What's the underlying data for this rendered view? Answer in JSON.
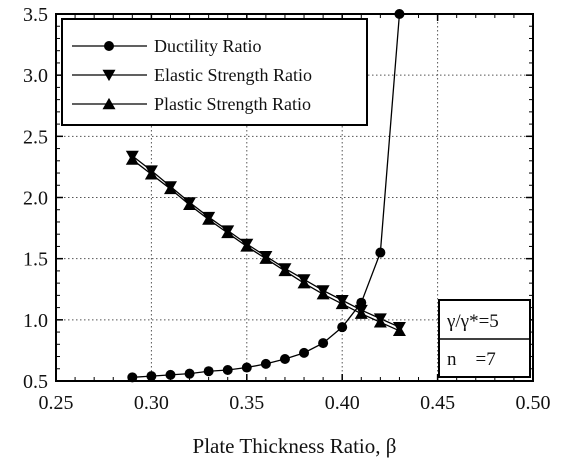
{
  "chart_data": {
    "type": "line",
    "xlabel": "Plate Thickness Ratio,  β",
    "ylabel": "",
    "xlim": [
      0.25,
      0.5
    ],
    "ylim": [
      0.5,
      3.5
    ],
    "xticks": [
      0.25,
      0.3,
      0.35,
      0.4,
      0.45,
      0.5
    ],
    "xtick_labels": [
      "0.25",
      "0.30",
      "0.35",
      "0.40",
      "0.45",
      "0.50"
    ],
    "yticks": [
      0.5,
      1.0,
      1.5,
      2.0,
      2.5,
      3.0,
      3.5
    ],
    "ytick_labels": [
      "0.5",
      "1.0",
      "1.5",
      "2.0",
      "2.5",
      "3.0",
      "3.5"
    ],
    "grid": true,
    "legend_position": "top-left",
    "series": [
      {
        "name": "Ductility Ratio",
        "marker": "circle",
        "x": [
          0.29,
          0.3,
          0.31,
          0.32,
          0.33,
          0.34,
          0.35,
          0.36,
          0.37,
          0.38,
          0.39,
          0.4,
          0.41,
          0.42,
          0.43
        ],
        "y": [
          0.53,
          0.54,
          0.55,
          0.56,
          0.58,
          0.59,
          0.61,
          0.64,
          0.68,
          0.73,
          0.81,
          0.94,
          1.14,
          1.55,
          3.5
        ]
      },
      {
        "name": "Elastic Strength Ratio",
        "marker": "triangle-down",
        "x": [
          0.29,
          0.3,
          0.31,
          0.32,
          0.33,
          0.34,
          0.35,
          0.36,
          0.37,
          0.38,
          0.39,
          0.4,
          0.41,
          0.42,
          0.43
        ],
        "y": [
          2.34,
          2.22,
          2.09,
          1.96,
          1.84,
          1.73,
          1.62,
          1.52,
          1.42,
          1.33,
          1.24,
          1.16,
          1.08,
          1.01,
          0.94
        ]
      },
      {
        "name": "Plastic Strength Ratio",
        "marker": "triangle-up",
        "x": [
          0.29,
          0.3,
          0.31,
          0.32,
          0.33,
          0.34,
          0.35,
          0.36,
          0.37,
          0.38,
          0.39,
          0.4,
          0.41,
          0.42,
          0.43
        ],
        "y": [
          2.31,
          2.19,
          2.07,
          1.94,
          1.82,
          1.71,
          1.6,
          1.5,
          1.4,
          1.3,
          1.21,
          1.13,
          1.05,
          0.98,
          0.91
        ]
      }
    ],
    "annotation": {
      "line1": "γ/γ*=5",
      "line2": "n    =7"
    }
  }
}
